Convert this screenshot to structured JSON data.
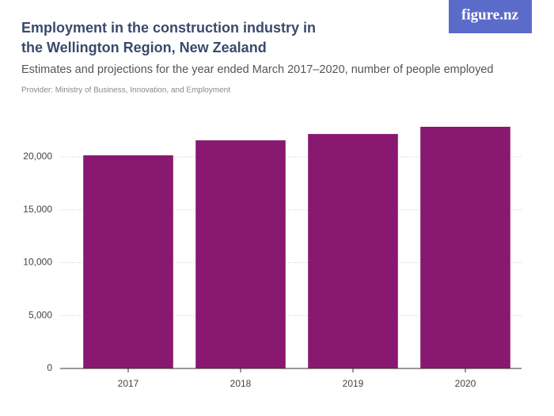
{
  "brand": "figure.nz",
  "chart_data": {
    "type": "bar",
    "title": [
      "Employment in the construction industry in",
      "the Wellington Region, New Zealand"
    ],
    "subtitle": "Estimates and projections for the year ended March 2017–2020, number of people employed",
    "provider": "Provider: Ministry of Business, Innovation, and Employment",
    "categories": [
      "2017",
      "2018",
      "2019",
      "2020"
    ],
    "values": [
      20150,
      21570,
      22170,
      22850
    ],
    "color": "#891870",
    "ylim": [
      0,
      23600
    ],
    "yticks": [
      0,
      {
        "value": 5000,
        "label": "5,000"
      },
      {
        "value": 10000,
        "label": "10,000"
      },
      {
        "value": 15000,
        "label": "15,000"
      },
      {
        "value": 20000,
        "label": "20,000"
      }
    ],
    "grid": true
  }
}
